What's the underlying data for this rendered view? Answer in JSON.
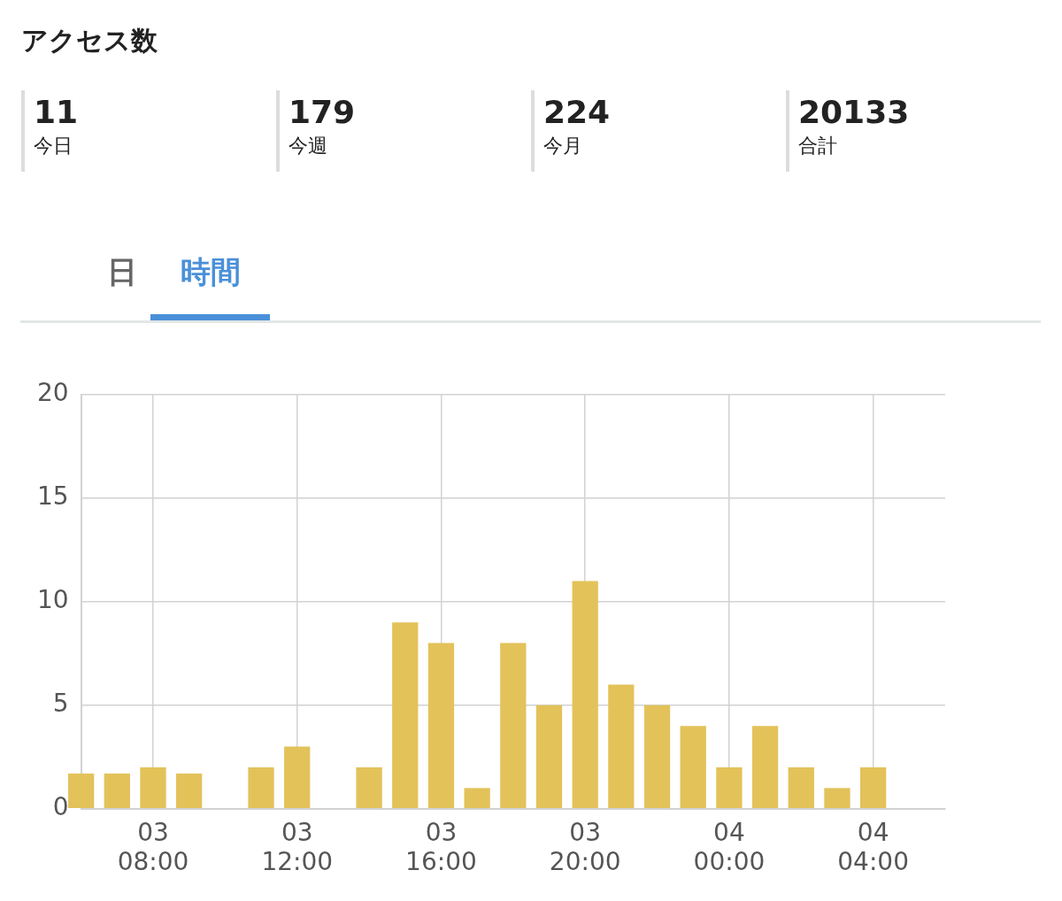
{
  "chart_data": [
    {
      "type": "other",
      "title": "アクセス数",
      "annotations": [
        "11",
        "今日",
        "179",
        "今週",
        "224",
        "今月",
        "20133",
        "合計"
      ]
    },
    {
      "type": "bar",
      "annotations": [
        "日",
        "時間"
      ],
      "categories": [
        null,
        null,
        "03\n08:00",
        null,
        null,
        null,
        "03\n12:00",
        null,
        null,
        null,
        "03\n16:00",
        null,
        null,
        null,
        "03\n20:00",
        null,
        null,
        null,
        "04\n00:00",
        null,
        null,
        null,
        "04\n04:00",
        null,
        null
      ],
      "values": [
        1.7,
        1.7,
        2,
        1.7,
        null,
        2,
        3,
        null,
        2,
        9,
        8,
        1,
        8,
        5,
        11,
        6,
        5,
        4,
        2,
        4,
        2,
        1,
        2,
        null,
        null
      ],
      "color": "#e3c25a",
      "ylim": [
        0,
        20
      ],
      "yticks": [
        0,
        5,
        10,
        15,
        20
      ],
      "grid": true
    }
  ]
}
